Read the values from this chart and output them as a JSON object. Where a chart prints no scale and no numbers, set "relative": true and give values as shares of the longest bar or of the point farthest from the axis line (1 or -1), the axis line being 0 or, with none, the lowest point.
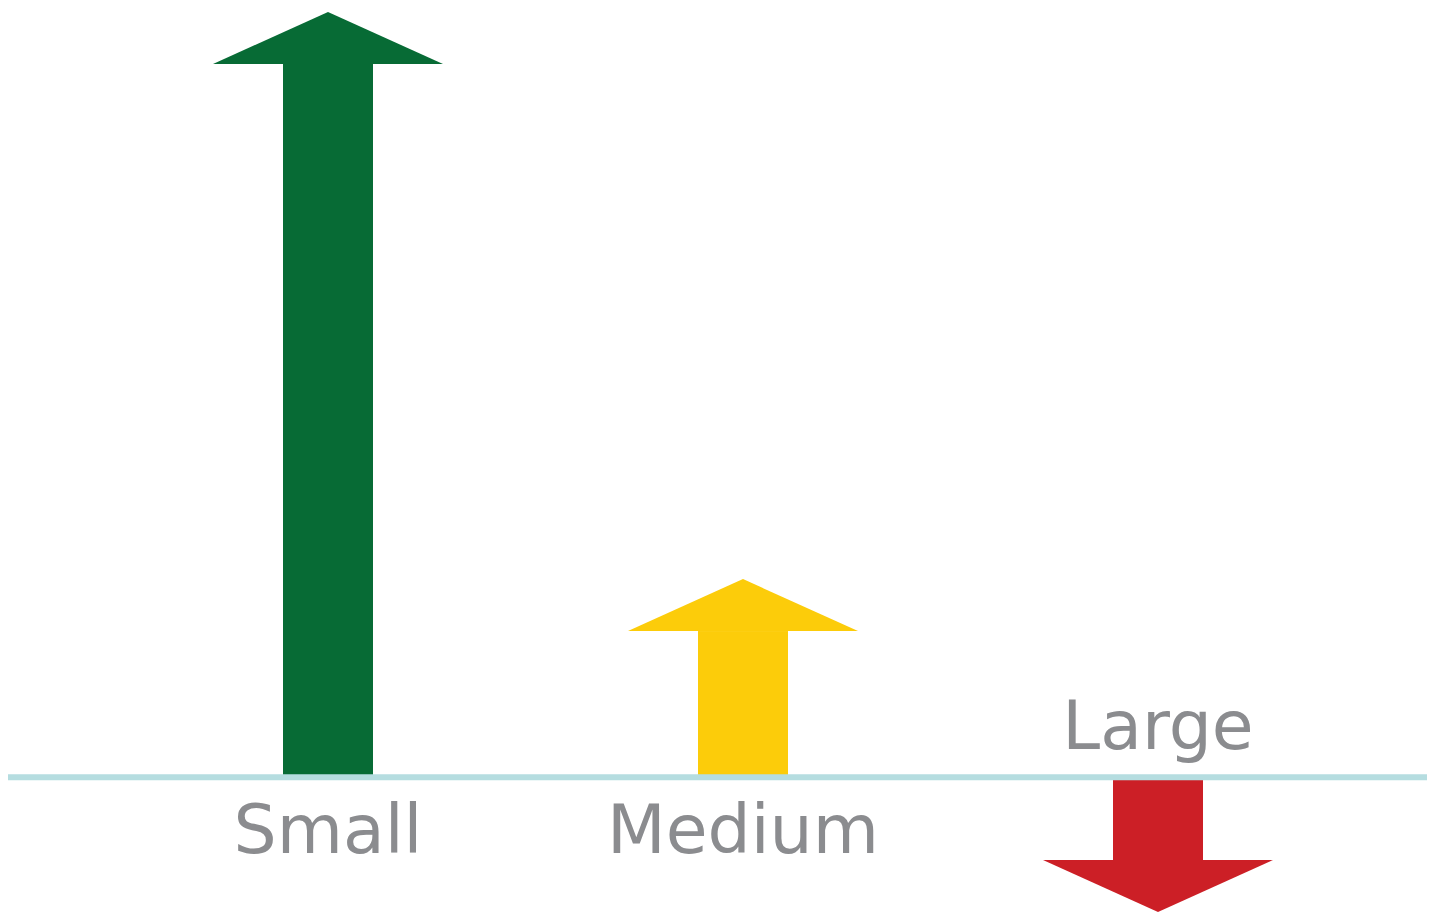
{
  "chart_data": {
    "type": "bar",
    "relative": true,
    "categories": [
      "Small",
      "Medium",
      "Large"
    ],
    "values": [
      1,
      0.205,
      -0.116
    ],
    "colors": [
      "#076b35",
      "#fccc0a",
      "#cc1f26"
    ]
  }
}
